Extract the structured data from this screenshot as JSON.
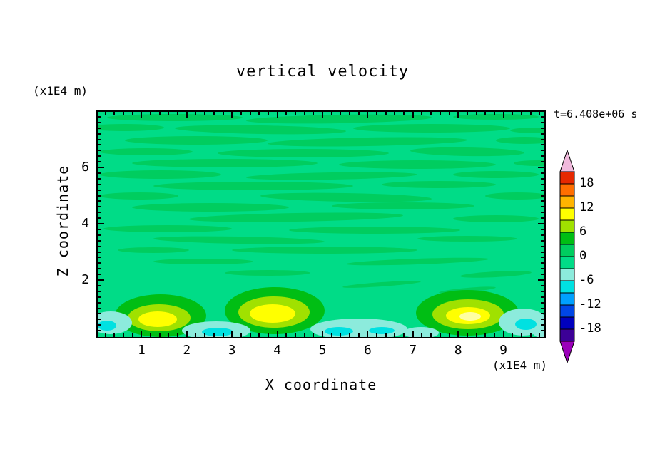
{
  "title": "vertical velocity",
  "timestamp": "t=6.408e+06 s",
  "axes": {
    "x_label": "X coordinate",
    "x_unit": "(x1E4 m)",
    "z_label": "Z coordinate",
    "z_unit": "(x1E4 m)",
    "x_ticks": [
      "1",
      "2",
      "3",
      "4",
      "5",
      "6",
      "7",
      "8",
      "9"
    ],
    "z_ticks": [
      "2",
      "4",
      "6"
    ],
    "x_range": [
      0,
      9.9
    ],
    "z_range": [
      0,
      8.0
    ]
  },
  "palette": {
    "background": "#00DC87",
    "streak": "#00CD5F",
    "ring_green": "#00BE14",
    "ring_yellow_green": "#A0E100",
    "core_yellow": "#FFFF00",
    "core_pale": "#FFFFA0",
    "cyan_light": "#8CEBDC",
    "cyan": "#00E1E1",
    "frame": "#000000"
  },
  "colorbar": {
    "labels": [
      "18",
      "12",
      "6",
      "0",
      "-6",
      "-12",
      "-18"
    ],
    "level_step": 3,
    "top_arrow_color": "#F0B9DC",
    "bottom_arrow_color": "#9B00B9",
    "segments": [
      {
        "from": 18,
        "to": 21,
        "color": "#E62800"
      },
      {
        "from": 15,
        "to": 18,
        "color": "#FF6E00"
      },
      {
        "from": 12,
        "to": 15,
        "color": "#FFB400"
      },
      {
        "from": 9,
        "to": 12,
        "color": "#FFFF00"
      },
      {
        "from": 6,
        "to": 9,
        "color": "#A0E100"
      },
      {
        "from": 3,
        "to": 6,
        "color": "#00BE14"
      },
      {
        "from": 0,
        "to": 3,
        "color": "#00CD5F"
      },
      {
        "from": -3,
        "to": 0,
        "color": "#00DC87"
      },
      {
        "from": -6,
        "to": -3,
        "color": "#8CEBDC"
      },
      {
        "from": -9,
        "to": -6,
        "color": "#00E1E1"
      },
      {
        "from": -12,
        "to": -9,
        "color": "#00A0FF"
      },
      {
        "from": -15,
        "to": -12,
        "color": "#0046E6"
      },
      {
        "from": -18,
        "to": -15,
        "color": "#0000BE"
      },
      {
        "from": -21,
        "to": -18,
        "color": "#3C0096"
      }
    ]
  },
  "chart_data": {
    "type": "heatmap",
    "variant": "filled-contour",
    "title": "vertical velocity",
    "xlabel": "X coordinate (x1E4 m)",
    "ylabel": "Z coordinate (x1E4 m)",
    "time_annotation": "t=6.408e+06 s",
    "x_range": [
      0,
      9.9
    ],
    "y_range": [
      0,
      8.0
    ],
    "contour_interval": 3,
    "colorbar_tick_values": [
      18,
      12,
      6,
      0,
      -6,
      -12,
      -18
    ],
    "colorbar_range": [
      -21,
      21
    ],
    "field_description": "Vertical velocity field: mostly near-zero (within ±3) green background with wavy horizontal banding aloft; convective updraft cores and cyan downdraft patches near the lower boundary",
    "features": [
      {
        "kind": "updraft core",
        "x": 1.4,
        "z": 0.7,
        "approx_peak": 12
      },
      {
        "kind": "updraft core",
        "x": 3.9,
        "z": 0.85,
        "approx_peak": 12
      },
      {
        "kind": "updraft core",
        "x": 8.2,
        "z": 0.8,
        "approx_peak": 15
      },
      {
        "kind": "downdraft",
        "x": 0.3,
        "z": 0.6,
        "approx_min": -9
      },
      {
        "kind": "downdraft",
        "x": 2.65,
        "z": 0.25,
        "approx_min": -9
      },
      {
        "kind": "downdraft",
        "x": 5.8,
        "z": 0.3,
        "approx_min": -9
      },
      {
        "kind": "downdraft",
        "x": 7.2,
        "z": 0.2,
        "approx_min": -6
      },
      {
        "kind": "downdraft",
        "x": 9.4,
        "z": 0.7,
        "approx_min": -9
      }
    ]
  }
}
